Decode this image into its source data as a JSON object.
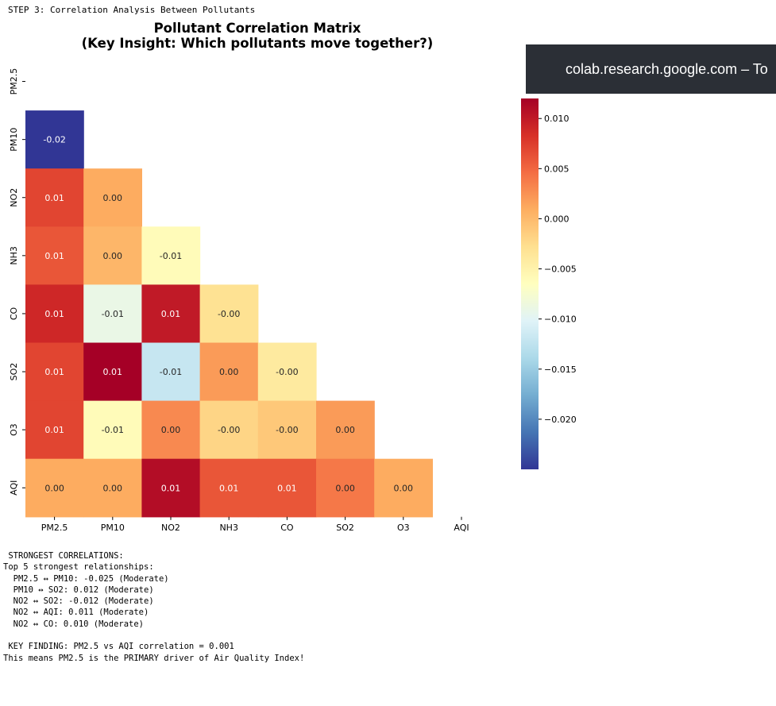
{
  "output": {
    "step_header": "STEP 3: Correlation Analysis Between Pollutants",
    "lines": [
      " STRONGEST CORRELATIONS:",
      "Top 5 strongest relationships:",
      "  PM2.5 ↔ PM10: -0.025 (Moderate)",
      "  PM10 ↔ SO2: 0.012 (Moderate)",
      "  NO2 ↔ SO2: -0.012 (Moderate)",
      "  NO2 ↔ AQI: 0.011 (Moderate)",
      "  NO2 ↔ CO: 0.010 (Moderate)",
      "",
      " KEY FINDING: PM2.5 vs AQI correlation = 0.001",
      "This means PM2.5 is the PRIMARY driver of Air Quality Index!"
    ]
  },
  "banner": {
    "text": "colab.research.google.com – To"
  },
  "chart_data": {
    "type": "heatmap",
    "title_lines": [
      "Pollutant Correlation Matrix",
      "(Key Insight: Which pollutants move together?)"
    ],
    "labels": [
      "PM2.5",
      "PM10",
      "NO2",
      "NH3",
      "CO",
      "SO2",
      "O3",
      "AQI"
    ],
    "mask": "upper-triangle-and-diagonal",
    "colormap": "RdYlBu_r",
    "vmin": -0.025,
    "vmax": 0.012,
    "values": [
      [
        null,
        null,
        null,
        null,
        null,
        null,
        null,
        null
      ],
      [
        -0.025,
        null,
        null,
        null,
        null,
        null,
        null,
        null
      ],
      [
        0.007,
        0.001,
        null,
        null,
        null,
        null,
        null,
        null
      ],
      [
        0.006,
        0.0003,
        -0.006,
        null,
        null,
        null,
        null,
        null
      ],
      [
        0.009,
        -0.009,
        0.01,
        -0.003,
        null,
        null,
        null,
        null
      ],
      [
        0.007,
        0.012,
        -0.012,
        0.002,
        -0.004,
        null,
        null,
        null
      ],
      [
        0.007,
        -0.006,
        0.003,
        -0.002,
        -0.001,
        0.002,
        null,
        null
      ],
      [
        0.001,
        0.001,
        0.011,
        0.006,
        0.006,
        0.004,
        0.001,
        null
      ]
    ],
    "annotations": [
      [
        null,
        null,
        null,
        null,
        null,
        null,
        null,
        null
      ],
      [
        "-0.02",
        null,
        null,
        null,
        null,
        null,
        null,
        null
      ],
      [
        "0.01",
        "0.00",
        null,
        null,
        null,
        null,
        null,
        null
      ],
      [
        "0.01",
        "0.00",
        "-0.01",
        null,
        null,
        null,
        null,
        null
      ],
      [
        "0.01",
        "-0.01",
        "0.01",
        "-0.00",
        null,
        null,
        null,
        null
      ],
      [
        "0.01",
        "0.01",
        "-0.01",
        "0.00",
        "-0.00",
        null,
        null,
        null
      ],
      [
        "0.01",
        "-0.01",
        "0.00",
        "-0.00",
        "-0.00",
        "0.00",
        null,
        null
      ],
      [
        "0.00",
        "0.00",
        "0.01",
        "0.01",
        "0.01",
        "0.00",
        "0.00",
        null
      ]
    ],
    "colorbar_ticks": [
      {
        "value": 0.01,
        "label": "0.010"
      },
      {
        "value": 0.005,
        "label": "0.005"
      },
      {
        "value": 0.0,
        "label": "0.000"
      },
      {
        "value": -0.005,
        "label": "−0.005"
      },
      {
        "value": -0.01,
        "label": "−0.010"
      },
      {
        "value": -0.015,
        "label": "−0.015"
      },
      {
        "value": -0.02,
        "label": "−0.020"
      }
    ]
  }
}
